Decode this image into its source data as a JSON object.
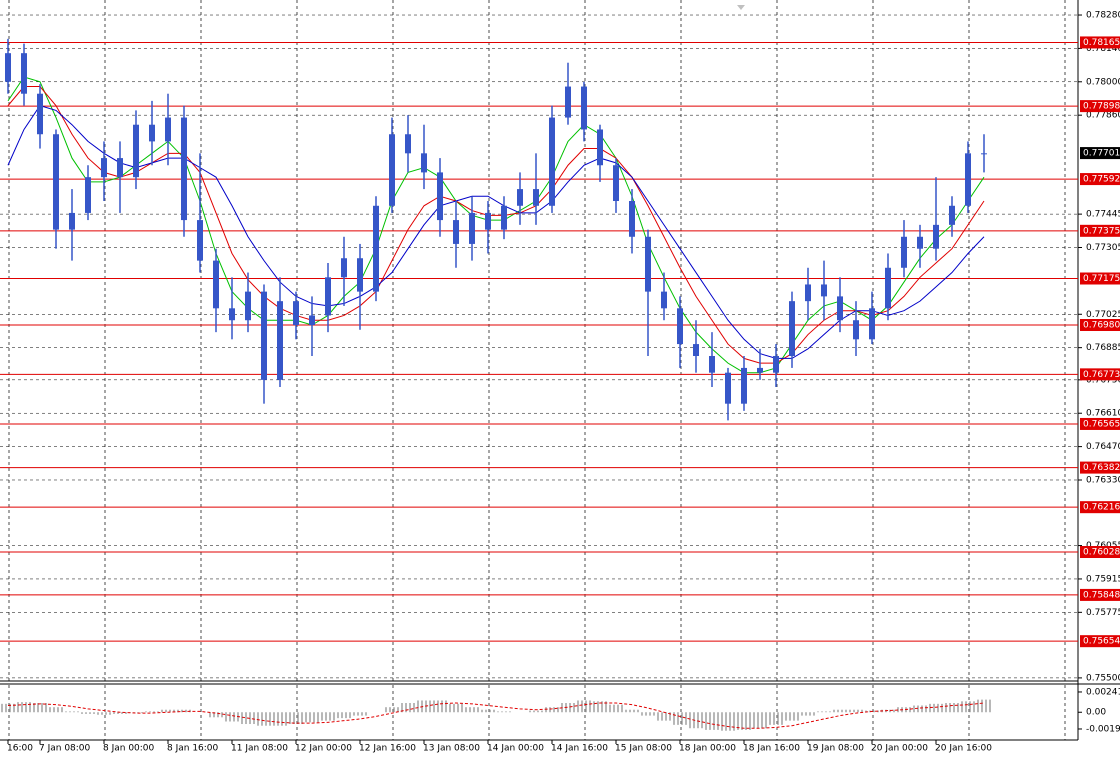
{
  "chart_data": [
    {
      "type": "candlestick",
      "categories": [
        "16:00",
        null,
        "7 Jan 08:00",
        null,
        null,
        null,
        "8 Jan 00:00",
        null,
        null,
        null,
        "8 Jan 16:00",
        null,
        null,
        null,
        "11 Jan 08:00",
        null,
        null,
        null,
        "12 Jan 00:00",
        null,
        null,
        null,
        "12 Jan 16:00",
        null,
        null,
        null,
        "13 Jan 08:00",
        null,
        null,
        null,
        "14 Jan 00:00",
        null,
        null,
        null,
        "14 Jan 16:00",
        null,
        null,
        null,
        "15 Jan 08:00",
        null,
        null,
        null,
        "18 Jan 00:00",
        null,
        null,
        null,
        "18 Jan 16:00",
        null,
        null,
        null,
        "19 Jan 08:00",
        null,
        null,
        null,
        "20 Jan 00:00",
        null,
        null,
        null,
        "20 Jan 16:00",
        null,
        null,
        null
      ],
      "open": [
        0.78,
        0.7812,
        0.7795,
        0.7778,
        0.7738,
        0.7745,
        0.776,
        0.7768,
        0.776,
        0.7782,
        0.7775,
        0.7785,
        0.7742,
        0.7725,
        0.7705,
        0.77,
        0.7712,
        0.7675,
        0.7708,
        0.7698,
        0.7702,
        0.7718,
        0.7726,
        0.7712,
        0.7748,
        0.7778,
        0.777,
        0.7762,
        0.7742,
        0.7732,
        0.7745,
        0.7738,
        0.7748,
        0.7755,
        0.7748,
        0.7785,
        0.7798,
        0.778,
        0.7765,
        0.775,
        0.7735,
        0.7712,
        0.7705,
        0.769,
        0.7685,
        0.7678,
        0.7665,
        0.768,
        0.7678,
        0.7685,
        0.7708,
        0.7715,
        0.771,
        0.77,
        0.7692,
        0.7705,
        0.7722,
        0.7735,
        0.773,
        0.774,
        0.7748,
        0.777
      ],
      "high": [
        0.7818,
        0.7816,
        0.7799,
        0.778,
        0.7755,
        0.7765,
        0.7775,
        0.7775,
        0.7788,
        0.7792,
        0.7795,
        0.779,
        0.777,
        0.773,
        0.7718,
        0.772,
        0.7715,
        0.7718,
        0.7712,
        0.771,
        0.7724,
        0.7735,
        0.7732,
        0.7752,
        0.7785,
        0.7786,
        0.7782,
        0.7768,
        0.775,
        0.7752,
        0.775,
        0.7752,
        0.7762,
        0.777,
        0.779,
        0.7808,
        0.78,
        0.7782,
        0.7768,
        0.7755,
        0.7738,
        0.772,
        0.771,
        0.77,
        0.7695,
        0.768,
        0.7685,
        0.7688,
        0.769,
        0.7712,
        0.7722,
        0.7725,
        0.7718,
        0.7708,
        0.7712,
        0.7728,
        0.7742,
        0.774,
        0.776,
        0.7752,
        0.7775,
        0.7778
      ],
      "low": [
        0.7795,
        0.779,
        0.7772,
        0.773,
        0.7725,
        0.7742,
        0.775,
        0.7745,
        0.7755,
        0.7765,
        0.7765,
        0.7735,
        0.772,
        0.7695,
        0.7692,
        0.7695,
        0.7665,
        0.7672,
        0.7692,
        0.7685,
        0.7695,
        0.7706,
        0.7696,
        0.7708,
        0.7745,
        0.7762,
        0.7755,
        0.7735,
        0.7722,
        0.7725,
        0.7728,
        0.7734,
        0.774,
        0.774,
        0.7745,
        0.7782,
        0.7775,
        0.7758,
        0.7745,
        0.7728,
        0.7685,
        0.77,
        0.768,
        0.7678,
        0.7672,
        0.7658,
        0.7662,
        0.7675,
        0.7672,
        0.768,
        0.77,
        0.77,
        0.7695,
        0.7685,
        0.769,
        0.77,
        0.7718,
        0.7722,
        0.7725,
        0.7735,
        0.7745,
        0.7762
      ],
      "close": [
        0.7812,
        0.7795,
        0.7778,
        0.7738,
        0.7745,
        0.776,
        0.7768,
        0.776,
        0.7782,
        0.7775,
        0.7785,
        0.7742,
        0.7725,
        0.7705,
        0.77,
        0.7712,
        0.7675,
        0.7708,
        0.7698,
        0.7702,
        0.7718,
        0.7726,
        0.7712,
        0.7748,
        0.7778,
        0.777,
        0.7762,
        0.7742,
        0.7732,
        0.7745,
        0.7738,
        0.7748,
        0.7755,
        0.7748,
        0.7785,
        0.7798,
        0.778,
        0.7765,
        0.775,
        0.7735,
        0.7712,
        0.7705,
        0.769,
        0.7685,
        0.7678,
        0.7665,
        0.768,
        0.7678,
        0.7685,
        0.7708,
        0.7715,
        0.771,
        0.77,
        0.7692,
        0.7705,
        0.7722,
        0.7735,
        0.773,
        0.774,
        0.7748,
        0.777,
        0.777
      ],
      "color": "#3656c8",
      "lines": [
        {
          "color": "#00c000",
          "values": [
            0.7792,
            0.7802,
            0.78,
            0.7785,
            0.7768,
            0.7758,
            0.7758,
            0.776,
            0.7765,
            0.777,
            0.7775,
            0.7768,
            0.775,
            0.7728,
            0.7712,
            0.7705,
            0.77,
            0.77,
            0.77,
            0.7698,
            0.7702,
            0.771,
            0.7716,
            0.773,
            0.775,
            0.7762,
            0.7764,
            0.776,
            0.775,
            0.7744,
            0.7742,
            0.7742,
            0.7746,
            0.775,
            0.776,
            0.7775,
            0.7782,
            0.7778,
            0.7768,
            0.7752,
            0.7732,
            0.7718,
            0.7705,
            0.7695,
            0.7688,
            0.7682,
            0.7678,
            0.7678,
            0.768,
            0.769,
            0.77,
            0.7706,
            0.7708,
            0.7704,
            0.77,
            0.7706,
            0.7716,
            0.7726,
            0.7734,
            0.774,
            0.775,
            0.776
          ]
        },
        {
          "color": "#e00000",
          "values": [
            0.779,
            0.7798,
            0.7798,
            0.779,
            0.7778,
            0.7768,
            0.7762,
            0.776,
            0.7762,
            0.7766,
            0.777,
            0.777,
            0.7762,
            0.7745,
            0.7728,
            0.7717,
            0.771,
            0.7705,
            0.7702,
            0.77,
            0.77,
            0.7702,
            0.7706,
            0.7712,
            0.7725,
            0.7738,
            0.7748,
            0.7752,
            0.775,
            0.7746,
            0.7744,
            0.7744,
            0.7745,
            0.7748,
            0.7755,
            0.7765,
            0.7772,
            0.7772,
            0.7768,
            0.776,
            0.7748,
            0.7735,
            0.7722,
            0.771,
            0.77,
            0.769,
            0.7684,
            0.7682,
            0.7682,
            0.7686,
            0.7694,
            0.77,
            0.7704,
            0.7704,
            0.7702,
            0.7704,
            0.771,
            0.7718,
            0.7724,
            0.773,
            0.774,
            0.775
          ]
        },
        {
          "color": "#0000c8",
          "values": [
            0.7765,
            0.778,
            0.779,
            0.7788,
            0.7782,
            0.7775,
            0.777,
            0.7766,
            0.7764,
            0.7766,
            0.7768,
            0.7768,
            0.7764,
            0.776,
            0.7748,
            0.7735,
            0.7725,
            0.7716,
            0.771,
            0.7707,
            0.7706,
            0.7707,
            0.771,
            0.7714,
            0.772,
            0.773,
            0.774,
            0.7748,
            0.775,
            0.7752,
            0.7752,
            0.7748,
            0.7745,
            0.7745,
            0.775,
            0.7758,
            0.7765,
            0.7768,
            0.7766,
            0.776,
            0.775,
            0.774,
            0.773,
            0.772,
            0.771,
            0.77,
            0.7692,
            0.7686,
            0.7684,
            0.7684,
            0.7688,
            0.7694,
            0.77,
            0.7704,
            0.7704,
            0.7702,
            0.7704,
            0.7708,
            0.7714,
            0.772,
            0.7728,
            0.7735
          ]
        }
      ],
      "ylim": [
        0.75487,
        0.78343
      ],
      "yticks": [
        {
          "value": 0.7828,
          "label": "0.78280"
        },
        {
          "value": 0.7814,
          "label": "0.78140"
        },
        {
          "value": 0.78,
          "label": "0.78000"
        },
        {
          "value": 0.7786,
          "label": "0.77860"
        },
        0.77445,
        0.77305,
        0.77025,
        0.76885,
        {
          "value": 0.7675,
          "label": "0.76750"
        },
        {
          "value": 0.7661,
          "label": "0.76610"
        },
        {
          "value": 0.7647,
          "label": "0.76470"
        },
        {
          "value": 0.7633,
          "label": "0.76330"
        },
        0.76055,
        0.75915,
        0.75775,
        {
          "value": 0.755,
          "label": "0.75500"
        }
      ],
      "levels": [
        {
          "value": 0.78165,
          "label": "0.78165"
        },
        {
          "value": 0.77898,
          "label": "0.77898"
        },
        {
          "value": 0.77592,
          "label": "0.77592"
        },
        {
          "value": 0.77375,
          "label": "0.77375"
        },
        {
          "value": 0.77175,
          "label": "0.77175"
        },
        {
          "value": 0.7698,
          "label": "0.76980"
        },
        {
          "value": 0.76773,
          "label": "0.76773"
        },
        {
          "value": 0.76565,
          "label": "0.76565"
        },
        {
          "value": 0.76382,
          "label": "0.76382"
        },
        {
          "value": 0.76216,
          "label": "0.76216"
        },
        {
          "value": 0.76028,
          "label": "0.76028"
        },
        {
          "value": 0.75848,
          "label": "0.75848"
        },
        {
          "value": 0.75654,
          "label": "0.75654"
        }
      ],
      "level_color": "#e00000",
      "last_price": 0.77701,
      "grid": true
    },
    {
      "type": "oscillator",
      "histogram": [
        0.001,
        0.0012,
        0.0011,
        0.0006,
        0.0001,
        -0.0002,
        -0.0003,
        -0.0002,
        -0.0001,
        0.0001,
        0.0003,
        0.0003,
        0,
        -0.0006,
        -0.0011,
        -0.0014,
        -0.0016,
        -0.0016,
        -0.0014,
        -0.0012,
        -0.001,
        -0.0007,
        -0.0004,
        0,
        0.0006,
        0.0011,
        0.0014,
        0.0014,
        0.001,
        0.0006,
        0.0003,
        0.0001,
        0,
        0.0002,
        0.0006,
        0.0011,
        0.0014,
        0.0013,
        0.0009,
        0.0003,
        -0.0004,
        -0.001,
        -0.0015,
        -0.0019,
        -0.0021,
        -0.0022,
        -0.0021,
        -0.0019,
        -0.0015,
        -0.001,
        -0.0004,
        0.0001,
        0.0003,
        0.0003,
        0.0002,
        0.0003,
        0.0006,
        0.0008,
        0.001,
        0.0011,
        0.0013,
        0.0015
      ],
      "signal": [
        0.0008,
        0.0009,
        0.001,
        0.0009,
        0.0007,
        0.0004,
        0.0002,
        0,
        -0.0001,
        -0.0001,
        0,
        0.0001,
        0.0001,
        -0.0001,
        -0.0004,
        -0.0007,
        -0.001,
        -0.0012,
        -0.0013,
        -0.0013,
        -0.0012,
        -0.001,
        -0.0008,
        -0.0005,
        -0.0001,
        0.0003,
        0.0007,
        0.001,
        0.0011,
        0.001,
        0.0008,
        0.0006,
        0.0004,
        0.0003,
        0.0004,
        0.0006,
        0.0009,
        0.0011,
        0.0011,
        0.0009,
        0.0005,
        0,
        -0.0005,
        -0.001,
        -0.0014,
        -0.0017,
        -0.0019,
        -0.0019,
        -0.0018,
        -0.0016,
        -0.0012,
        -0.0008,
        -0.0004,
        -0.0001,
        0.0001,
        0.0002,
        0.0003,
        0.0005,
        0.0006,
        0.0008,
        0.0009,
        0.0011
      ],
      "histogram_color": "#a0a0a0",
      "signal_color": "#e00000",
      "ylim": [
        -0.0033,
        0.00312
      ],
      "yticks": [
        0.00241,
        {
          "value": 0,
          "label": "0.00"
        },
        -0.00199
      ]
    }
  ]
}
